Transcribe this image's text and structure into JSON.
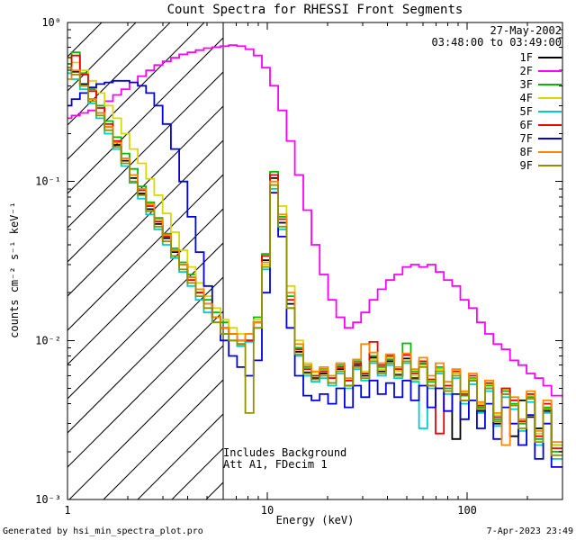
{
  "chart_data": {
    "type": "line",
    "title": "Count Spectra for RHESSI Front Segments",
    "xlabel": "Energy (keV)",
    "ylabel": "counts cm⁻² s⁻¹ keV⁻¹",
    "xscale": "log",
    "yscale": "log",
    "xlim": [
      1,
      300
    ],
    "ylim": [
      0.001,
      1
    ],
    "x_ticks": [
      {
        "value": 1,
        "label": "1"
      },
      {
        "value": 10,
        "label": "10"
      },
      {
        "value": 100,
        "label": "100"
      }
    ],
    "y_ticks": [
      {
        "value": 1,
        "label": "10⁰"
      },
      {
        "value": 0.1,
        "label": "10⁻¹"
      },
      {
        "value": 0.01,
        "label": "10⁻²"
      },
      {
        "value": 0.001,
        "label": "10⁻³"
      }
    ],
    "hatched_region": {
      "xmin": 1,
      "xmax": 6
    },
    "threshold_line_kev": 6,
    "date_line1": "27-May-2002",
    "date_line2": "03:48:00 to 03:49:00",
    "annotations": [
      "Includes Background",
      "Att A1, FDecim 1"
    ],
    "x": [
      1.0,
      1.1,
      1.21,
      1.33,
      1.46,
      1.61,
      1.77,
      1.95,
      2.14,
      2.36,
      2.59,
      2.85,
      3.14,
      3.45,
      3.8,
      4.18,
      4.59,
      5.05,
      5.56,
      6.11,
      6.73,
      7.4,
      8.14,
      8.95,
      9.85,
      10.8,
      11.9,
      13.1,
      14.4,
      15.9,
      17.4,
      19.2,
      21.1,
      23.2,
      25.6,
      28.1,
      30.9,
      34.0,
      37.4,
      41.1,
      45.3,
      49.8,
      54.8,
      60.2,
      66.3,
      72.9,
      80.2,
      88.2,
      97.0,
      107,
      117,
      129,
      142,
      156,
      172,
      189,
      208,
      229,
      252,
      277
    ],
    "series": [
      {
        "name": "1F",
        "color": "#000000",
        "y": [
          0.55,
          0.49,
          0.41,
          0.33,
          0.27,
          0.22,
          0.17,
          0.135,
          0.105,
          0.084,
          0.067,
          0.054,
          0.044,
          0.036,
          0.03,
          0.025,
          0.02,
          0.017,
          0.014,
          0.012,
          0.011,
          0.0095,
          0.01,
          0.013,
          0.032,
          0.105,
          0.055,
          0.017,
          0.0085,
          0.0063,
          0.0058,
          0.0062,
          0.0054,
          0.0066,
          0.0052,
          0.007,
          0.006,
          0.0078,
          0.0064,
          0.0074,
          0.0061,
          0.0077,
          0.0058,
          0.0071,
          0.0052,
          0.0066,
          0.0048,
          0.0024,
          0.0042,
          0.0056,
          0.0036,
          0.005,
          0.003,
          0.0046,
          0.0025,
          0.0042,
          0.0033,
          0.0028,
          0.0036,
          0.0022
        ]
      },
      {
        "name": "2F",
        "color": "#FF00FF",
        "y": [
          0.25,
          0.26,
          0.27,
          0.28,
          0.3,
          0.32,
          0.35,
          0.38,
          0.42,
          0.46,
          0.5,
          0.54,
          0.57,
          0.6,
          0.63,
          0.65,
          0.67,
          0.69,
          0.7,
          0.71,
          0.72,
          0.71,
          0.68,
          0.62,
          0.52,
          0.4,
          0.28,
          0.18,
          0.11,
          0.066,
          0.04,
          0.026,
          0.018,
          0.014,
          0.012,
          0.013,
          0.015,
          0.018,
          0.021,
          0.024,
          0.026,
          0.029,
          0.03,
          0.029,
          0.03,
          0.027,
          0.024,
          0.022,
          0.018,
          0.016,
          0.013,
          0.011,
          0.0095,
          0.0088,
          0.0075,
          0.007,
          0.0062,
          0.0058,
          0.0052,
          0.0045
        ]
      },
      {
        "name": "3F",
        "color": "#00BB00",
        "y": [
          0.55,
          0.65,
          0.48,
          0.38,
          0.3,
          0.24,
          0.19,
          0.15,
          0.12,
          0.093,
          0.074,
          0.059,
          0.047,
          0.038,
          0.031,
          0.026,
          0.021,
          0.018,
          0.015,
          0.013,
          0.011,
          0.01,
          0.011,
          0.014,
          0.035,
          0.115,
          0.06,
          0.019,
          0.009,
          0.0068,
          0.006,
          0.0066,
          0.0058,
          0.007,
          0.0056,
          0.0074,
          0.0062,
          0.008,
          0.0068,
          0.0076,
          0.006,
          0.0096,
          0.0064,
          0.0072,
          0.0055,
          0.0068,
          0.005,
          0.0062,
          0.0045,
          0.0058,
          0.0038,
          0.0052,
          0.0032,
          0.0048,
          0.004,
          0.003,
          0.0044,
          0.0024,
          0.0038,
          0.002
        ]
      },
      {
        "name": "4F",
        "color": "#D8D800",
        "y": [
          0.6,
          0.56,
          0.5,
          0.43,
          0.36,
          0.3,
          0.25,
          0.2,
          0.16,
          0.13,
          0.104,
          0.082,
          0.063,
          0.048,
          0.037,
          0.029,
          0.023,
          0.019,
          0.016,
          0.0135,
          0.012,
          0.011,
          0.011,
          0.0135,
          0.03,
          0.095,
          0.07,
          0.022,
          0.01,
          0.0072,
          0.0063,
          0.0065,
          0.006,
          0.0068,
          0.0058,
          0.0072,
          0.0064,
          0.0076,
          0.0066,
          0.0078,
          0.0064,
          0.0074,
          0.006,
          0.007,
          0.0056,
          0.0066,
          0.0052,
          0.0062,
          0.0047,
          0.0057,
          0.004,
          0.0053,
          0.0034,
          0.0049,
          0.0042,
          0.0031,
          0.0045,
          0.0026,
          0.004,
          0.0022
        ]
      },
      {
        "name": "5F",
        "color": "#00CCCC",
        "y": [
          0.48,
          0.44,
          0.38,
          0.31,
          0.25,
          0.2,
          0.16,
          0.125,
          0.098,
          0.078,
          0.062,
          0.05,
          0.04,
          0.033,
          0.027,
          0.022,
          0.018,
          0.015,
          0.013,
          0.011,
          0.01,
          0.0092,
          0.0098,
          0.012,
          0.028,
          0.09,
          0.05,
          0.016,
          0.008,
          0.006,
          0.0055,
          0.0058,
          0.0052,
          0.0062,
          0.005,
          0.0066,
          0.0056,
          0.0072,
          0.006,
          0.007,
          0.0058,
          0.0072,
          0.0055,
          0.0028,
          0.005,
          0.0062,
          0.0046,
          0.0058,
          0.004,
          0.0053,
          0.0035,
          0.0048,
          0.0029,
          0.0044,
          0.0037,
          0.0027,
          0.0041,
          0.0022,
          0.0035,
          0.0018
        ]
      },
      {
        "name": "6F",
        "color": "#EE0000",
        "y": [
          0.52,
          0.62,
          0.47,
          0.37,
          0.29,
          0.23,
          0.18,
          0.14,
          0.11,
          0.088,
          0.07,
          0.056,
          0.045,
          0.037,
          0.03,
          0.024,
          0.02,
          0.017,
          0.014,
          0.012,
          0.011,
          0.01,
          0.01,
          0.013,
          0.034,
          0.11,
          0.058,
          0.018,
          0.0088,
          0.0066,
          0.006,
          0.0064,
          0.0058,
          0.0068,
          0.0056,
          0.0072,
          0.0062,
          0.0098,
          0.007,
          0.008,
          0.0066,
          0.0081,
          0.0062,
          0.0074,
          0.0057,
          0.0026,
          0.0052,
          0.0064,
          0.0046,
          0.006,
          0.0039,
          0.0054,
          0.0033,
          0.005,
          0.0042,
          0.0031,
          0.0046,
          0.0025,
          0.004,
          0.0021
        ]
      },
      {
        "name": "7F",
        "color": "#0000DD",
        "y": [
          0.3,
          0.33,
          0.36,
          0.39,
          0.41,
          0.42,
          0.43,
          0.43,
          0.42,
          0.4,
          0.36,
          0.3,
          0.23,
          0.16,
          0.1,
          0.06,
          0.036,
          0.022,
          0.014,
          0.01,
          0.008,
          0.0068,
          0.006,
          0.0075,
          0.02,
          0.085,
          0.045,
          0.012,
          0.006,
          0.0045,
          0.0042,
          0.0046,
          0.004,
          0.005,
          0.0038,
          0.0052,
          0.0044,
          0.0056,
          0.0046,
          0.0054,
          0.0044,
          0.0056,
          0.0042,
          0.0052,
          0.0038,
          0.005,
          0.0036,
          0.0046,
          0.0032,
          0.0042,
          0.0028,
          0.004,
          0.0024,
          0.0038,
          0.003,
          0.0022,
          0.0034,
          0.0018,
          0.003,
          0.0016
        ]
      },
      {
        "name": "8F",
        "color": "#FF8800",
        "y": [
          0.44,
          0.5,
          0.4,
          0.33,
          0.27,
          0.22,
          0.175,
          0.14,
          0.11,
          0.09,
          0.072,
          0.058,
          0.046,
          0.037,
          0.03,
          0.025,
          0.021,
          0.017,
          0.014,
          0.012,
          0.011,
          0.01,
          0.011,
          0.013,
          0.031,
          0.1,
          0.062,
          0.02,
          0.0095,
          0.007,
          0.0064,
          0.0068,
          0.006,
          0.0072,
          0.0058,
          0.0076,
          0.0095,
          0.0084,
          0.0072,
          0.0082,
          0.0068,
          0.0083,
          0.0066,
          0.0078,
          0.006,
          0.0072,
          0.0055,
          0.0066,
          0.0048,
          0.0062,
          0.0041,
          0.0056,
          0.0035,
          0.0022,
          0.0044,
          0.0032,
          0.0048,
          0.0027,
          0.0042,
          0.0023
        ]
      },
      {
        "name": "9F",
        "color": "#929200",
        "y": [
          0.52,
          0.47,
          0.4,
          0.32,
          0.26,
          0.21,
          0.165,
          0.13,
          0.1,
          0.082,
          0.065,
          0.052,
          0.042,
          0.034,
          0.028,
          0.023,
          0.019,
          0.016,
          0.013,
          0.011,
          0.01,
          0.0095,
          0.0035,
          0.012,
          0.029,
          0.095,
          0.052,
          0.016,
          0.0082,
          0.0062,
          0.0057,
          0.006,
          0.0054,
          0.0064,
          0.0052,
          0.0068,
          0.0058,
          0.0074,
          0.0062,
          0.0072,
          0.006,
          0.0074,
          0.0057,
          0.0068,
          0.0052,
          0.0064,
          0.0048,
          0.006,
          0.0042,
          0.0056,
          0.0037,
          0.005,
          0.0031,
          0.0046,
          0.0039,
          0.0028,
          0.0043,
          0.0023,
          0.0037,
          0.0019
        ]
      }
    ]
  },
  "footer": {
    "left": "Generated by hsi_min_spectra_plot.pro",
    "right": "7-Apr-2023 23:49"
  }
}
